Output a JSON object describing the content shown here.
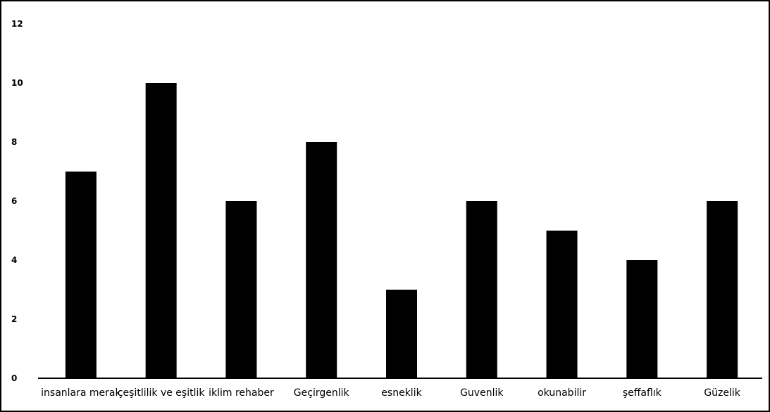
{
  "chart_data": {
    "type": "bar",
    "categories": [
      "insanlara merak",
      "çeşitlilik ve eşitlik",
      "iklim rehaber",
      "Geçirgenlik",
      "esneklik",
      "Guvenlik",
      "okunabilir",
      "şeffaflık",
      "Güzelik"
    ],
    "values": [
      7,
      10,
      6,
      8,
      3,
      6,
      5,
      4,
      6
    ],
    "title": "",
    "xlabel": "",
    "ylabel": "",
    "ylim": [
      0,
      12
    ],
    "yticks": [
      0,
      2,
      4,
      6,
      8,
      10,
      12
    ],
    "grid": false,
    "legend": "none",
    "bar_color": "#000000"
  }
}
